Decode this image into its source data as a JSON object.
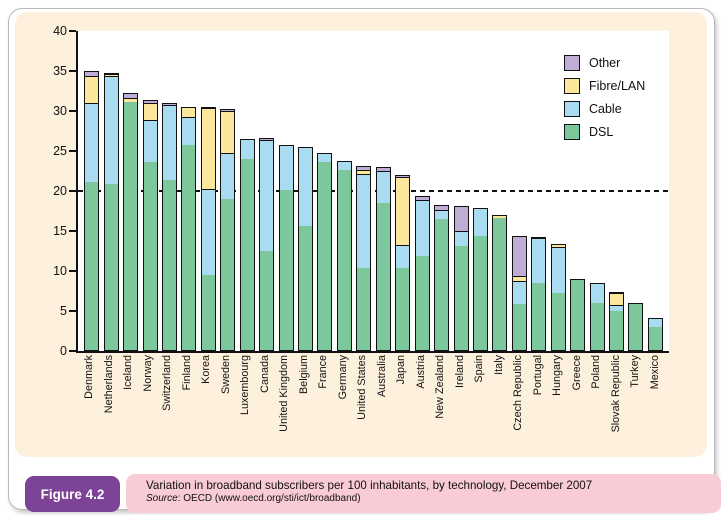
{
  "colors": {
    "panel_cream": "#fdf0dc",
    "caption_pink": "#f9cbd4",
    "badge_purple": "#7d4397",
    "frame_border": "#b7b7b7"
  },
  "figure": {
    "badge": "Figure 4.2"
  },
  "caption": {
    "title": "Variation in broadband subscribers per 100 inhabitants, by technology, December 2007",
    "source_label": "Source",
    "source_text": ": OECD (www.oecd.org/sti/ict/broadband)"
  },
  "chart_data": {
    "type": "bar",
    "stacked": true,
    "title": "",
    "xlabel": "",
    "ylabel": "",
    "ylim": [
      0,
      40
    ],
    "yticks": [
      0,
      5,
      10,
      15,
      20,
      25,
      30,
      35,
      40
    ],
    "reference_line": 20,
    "grid": false,
    "legend_position": "top-right",
    "colors": {
      "dsl": "#7dc79c",
      "cable": "#a9dcf0",
      "fibre": "#fbe79b",
      "other": "#bfadd6"
    },
    "legend": [
      {
        "label": "Other",
        "key": "other"
      },
      {
        "label": "Fibre/LAN",
        "key": "fibre"
      },
      {
        "label": "Cable",
        "key": "cable"
      },
      {
        "label": "DSL",
        "key": "dsl"
      }
    ],
    "categories": [
      "Denmark",
      "Netherlands",
      "Iceland",
      "Norway",
      "Switzerland",
      "Finland",
      "Korea",
      "Sweden",
      "Luxembourg",
      "Canada",
      "United Kingdom",
      "Belgium",
      "France",
      "Germany",
      "United States",
      "Australia",
      "Japan",
      "Austria",
      "New Zealand",
      "Ireland",
      "Spain",
      "Italy",
      "Czech Republic",
      "Portugal",
      "Hungary",
      "Greece",
      "Poland",
      "Slovak Republic",
      "Turkey",
      "Mexico"
    ],
    "series": [
      {
        "name": "DSL",
        "key": "dsl",
        "values": [
          21.0,
          20.8,
          31.0,
          23.5,
          21.2,
          25.6,
          9.4,
          18.9,
          23.9,
          12.4,
          20.0,
          15.5,
          23.5,
          22.5,
          10.3,
          18.4,
          10.3,
          11.8,
          16.4,
          13.0,
          14.2,
          16.5,
          5.8,
          8.4,
          7.1,
          9.0,
          5.9,
          4.9,
          5.8,
          2.9
        ]
      },
      {
        "name": "Cable",
        "key": "cable",
        "values": [
          9.9,
          13.4,
          0,
          5.3,
          9.4,
          3.5,
          10.7,
          5.7,
          2.6,
          13.9,
          5.7,
          10.0,
          1.2,
          1.2,
          11.7,
          4.0,
          2.8,
          7.0,
          1.1,
          1.9,
          3.7,
          0,
          2.8,
          5.6,
          5.8,
          0,
          2.6,
          0.7,
          0.2,
          1.2
        ]
      },
      {
        "name": "Fibre/LAN",
        "key": "fibre",
        "values": [
          3.3,
          0.3,
          0.5,
          2.1,
          0,
          1.4,
          10.2,
          5.3,
          0,
          0,
          0,
          0,
          0,
          0,
          0.5,
          0,
          8.5,
          0,
          0,
          0,
          0,
          0.5,
          0.7,
          0,
          0.3,
          0,
          0,
          1.5,
          0,
          0
        ]
      },
      {
        "name": "Other",
        "key": "other",
        "values": [
          0.8,
          0.3,
          0.8,
          0.5,
          0.4,
          0,
          0.2,
          0.4,
          0,
          0.3,
          0,
          0,
          0,
          0,
          0.6,
          0.6,
          0.4,
          0.6,
          0.7,
          3.2,
          0,
          0,
          5.1,
          0.3,
          0.2,
          0,
          0,
          0.3,
          0,
          0
        ]
      }
    ],
    "totals": [
      35.0,
      34.8,
      32.3,
      31.4,
      31.0,
      30.5,
      30.5,
      30.3,
      26.5,
      26.6,
      25.7,
      25.5,
      24.7,
      23.7,
      23.1,
      23.0,
      22.0,
      19.4,
      18.2,
      18.1,
      17.9,
      17.0,
      14.4,
      14.3,
      13.4,
      9.0,
      8.5,
      7.4,
      6.0,
      4.1
    ]
  }
}
